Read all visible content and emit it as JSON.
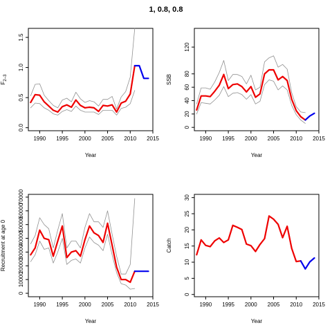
{
  "figure": {
    "title": "1, 0.8, 0.8"
  },
  "colors": {
    "main": "#ee0000",
    "forecast": "#0000ee",
    "ci": "#909090",
    "axis": "#000000"
  },
  "chart_data": [
    {
      "id": "f",
      "type": "line",
      "xlabel": "Year",
      "ylabel": "F",
      "ylabel_sub": "2–3",
      "xlim": [
        1987.5,
        2015
      ],
      "ylim": [
        -0.05,
        1.65
      ],
      "xticks": [
        "1990",
        "1995",
        "2000",
        "2005",
        "2010",
        "2015"
      ],
      "yticks": [
        "0.0",
        "0.5",
        "1.0",
        "1.5"
      ],
      "series": [
        {
          "role": "upper",
          "x": [
            1988,
            1989,
            1990,
            1991,
            1992,
            1993,
            1994,
            1995,
            1996,
            1997,
            1998,
            1999,
            2000,
            2001,
            2002,
            2003,
            2004,
            2005,
            2006,
            2007,
            2008,
            2009,
            2010,
            2011
          ],
          "y": [
            0.53,
            0.72,
            0.73,
            0.54,
            0.45,
            0.37,
            0.33,
            0.46,
            0.49,
            0.43,
            0.59,
            0.48,
            0.42,
            0.45,
            0.43,
            0.36,
            0.47,
            0.47,
            0.52,
            0.31,
            0.51,
            0.6,
            0.84,
            1.65
          ]
        },
        {
          "role": "estimate",
          "x": [
            1988,
            1989,
            1990,
            1991,
            1992,
            1993,
            1994,
            1995,
            1996,
            1997,
            1998,
            1999,
            2000,
            2001,
            2002,
            2003,
            2004,
            2005,
            2006,
            2007,
            2008,
            2009,
            2010,
            2011
          ],
          "y": [
            0.42,
            0.55,
            0.54,
            0.43,
            0.36,
            0.29,
            0.26,
            0.35,
            0.38,
            0.34,
            0.46,
            0.37,
            0.33,
            0.34,
            0.33,
            0.27,
            0.37,
            0.36,
            0.38,
            0.26,
            0.41,
            0.44,
            0.56,
            1.03
          ]
        },
        {
          "role": "lower",
          "x": [
            1988,
            1989,
            1990,
            1991,
            1992,
            1993,
            1994,
            1995,
            1996,
            1997,
            1998,
            1999,
            2000,
            2001,
            2002,
            2003,
            2004,
            2005,
            2006,
            2007,
            2008,
            2009,
            2010,
            2011
          ],
          "y": [
            0.33,
            0.41,
            0.4,
            0.33,
            0.29,
            0.23,
            0.21,
            0.27,
            0.3,
            0.27,
            0.36,
            0.29,
            0.26,
            0.26,
            0.26,
            0.22,
            0.29,
            0.29,
            0.29,
            0.21,
            0.32,
            0.34,
            0.4,
            0.62
          ]
        },
        {
          "role": "forecast",
          "x": [
            2011,
            2012,
            2013,
            2014
          ],
          "y": [
            1.03,
            1.03,
            0.82,
            0.82
          ]
        }
      ]
    },
    {
      "id": "ssb",
      "type": "line",
      "xlabel": "Year",
      "ylabel": "SSB",
      "xlim": [
        1987.5,
        2015
      ],
      "ylim": [
        -5,
        148
      ],
      "xticks": [
        "1990",
        "1995",
        "2000",
        "2005",
        "2010",
        "2015"
      ],
      "yticks": [
        "0",
        "20",
        "40",
        "60",
        "80",
        "120"
      ],
      "yticks_at": [
        0,
        20,
        40,
        60,
        80,
        120
      ],
      "series": [
        {
          "role": "upper",
          "x": [
            1988,
            1989,
            1990,
            1991,
            1992,
            1993,
            1994,
            1995,
            1996,
            1997,
            1998,
            1999,
            2000,
            2001,
            2002,
            2003,
            2004,
            2005,
            2006,
            2007,
            2008,
            2009,
            2010,
            2011,
            2012
          ],
          "y": [
            35,
            59,
            59,
            57,
            68,
            82,
            100,
            70,
            79,
            79,
            76,
            65,
            78,
            56,
            60,
            98,
            104,
            107,
            90,
            94,
            87,
            52,
            31,
            23,
            22
          ]
        },
        {
          "role": "estimate",
          "x": [
            1988,
            1989,
            1990,
            1991,
            1992,
            1993,
            1994,
            1995,
            1996,
            1997,
            1998,
            1999,
            2000,
            2001,
            2002,
            2003,
            2004,
            2005,
            2006,
            2007,
            2008,
            2009,
            2010,
            2011,
            2012
          ],
          "y": [
            26,
            47,
            47,
            46,
            54,
            63,
            79,
            58,
            64,
            65,
            61,
            53,
            61,
            45,
            50,
            80,
            86,
            86,
            71,
            76,
            70,
            42,
            25,
            16,
            11
          ]
        },
        {
          "role": "lower",
          "x": [
            1988,
            1989,
            1990,
            1991,
            1992,
            1993,
            1994,
            1995,
            1996,
            1997,
            1998,
            1999,
            2000,
            2001,
            2002,
            2003,
            2004,
            2005,
            2006,
            2007,
            2008,
            2009,
            2010,
            2011,
            2012
          ],
          "y": [
            20,
            37,
            36,
            35,
            41,
            48,
            61,
            46,
            51,
            52,
            49,
            42,
            49,
            35,
            39,
            64,
            71,
            69,
            56,
            62,
            56,
            33,
            19,
            11,
            6
          ]
        },
        {
          "role": "forecast",
          "x": [
            2012,
            2013,
            2014
          ],
          "y": [
            11,
            17,
            21
          ]
        }
      ]
    },
    {
      "id": "recruitment",
      "type": "line",
      "xlabel": "Year",
      "ylabel": "Recruitment at age 0",
      "xlim": [
        1987.5,
        2015
      ],
      "ylim": [
        -2500,
        72000
      ],
      "xticks": [
        "1990",
        "1995",
        "2000",
        "2005",
        "2010",
        "2015"
      ],
      "yticks": [
        "0",
        "10000",
        "20000",
        "30000",
        "40000",
        "50000",
        "60000",
        "70000"
      ],
      "yticks_at": [
        0,
        10000,
        20000,
        30000,
        40000,
        50000,
        60000,
        70000
      ],
      "series": [
        {
          "role": "upper",
          "x": [
            1988,
            1989,
            1990,
            1991,
            1992,
            1993,
            1994,
            1995,
            1996,
            1997,
            1998,
            1999,
            2000,
            2001,
            2002,
            2003,
            2004,
            2005,
            2006,
            2007,
            2008,
            2009,
            2010,
            2011
          ],
          "y": [
            36000,
            42000,
            55000,
            50000,
            47000,
            33000,
            46000,
            58000,
            33000,
            38000,
            38000,
            33000,
            48000,
            58000,
            52000,
            52000,
            48000,
            60000,
            43000,
            27000,
            14000,
            14000,
            21000,
            69000
          ]
        },
        {
          "role": "estimate",
          "x": [
            1988,
            1989,
            1990,
            1991,
            1992,
            1993,
            1994,
            1995,
            1996,
            1997,
            1998,
            1999,
            2000,
            2001,
            2002,
            2003,
            2004,
            2005,
            2006,
            2007,
            2008,
            2009,
            2010,
            2011
          ],
          "y": [
            28000,
            33000,
            46000,
            40000,
            39000,
            27000,
            38000,
            49000,
            26000,
            30000,
            31000,
            27000,
            39000,
            49000,
            44000,
            42000,
            37000,
            51000,
            35000,
            19000,
            10000,
            10000,
            8000,
            16000
          ]
        },
        {
          "role": "lower",
          "x": [
            1988,
            1989,
            1990,
            1991,
            1992,
            1993,
            1994,
            1995,
            1996,
            1997,
            1998,
            1999,
            2000,
            2001,
            2002,
            2003,
            2004,
            2005,
            2006,
            2007,
            2008,
            2009,
            2010,
            2011
          ],
          "y": [
            23000,
            28000,
            38000,
            32000,
            33000,
            22000,
            30000,
            40000,
            21000,
            24000,
            25000,
            22000,
            33000,
            41000,
            37000,
            35000,
            31000,
            43000,
            28000,
            15000,
            7000,
            6000,
            3000,
            3500
          ]
        },
        {
          "role": "forecast",
          "x": [
            2011,
            2012,
            2013,
            2014
          ],
          "y": [
            16000,
            16000,
            16000,
            16000
          ]
        }
      ]
    },
    {
      "id": "catch",
      "type": "line",
      "xlabel": "Year",
      "ylabel": "Catch",
      "xlim": [
        1987.5,
        2015
      ],
      "ylim": [
        -0.7,
        31
      ],
      "xticks": [
        "1990",
        "1995",
        "2000",
        "2005",
        "2010",
        "2015"
      ],
      "yticks": [
        "0",
        "5",
        "10",
        "15",
        "20",
        "25",
        "30"
      ],
      "yticks_at": [
        0,
        5,
        10,
        15,
        20,
        25,
        30
      ],
      "series": [
        {
          "role": "estimate",
          "x": [
            1988,
            1989,
            1990,
            1991,
            1992,
            1993,
            1994,
            1995,
            1996,
            1997,
            1998,
            1999,
            2000,
            2001,
            2002,
            2003,
            2004,
            2005,
            2006,
            2007,
            2008,
            2009,
            2010,
            2011
          ],
          "y": [
            12.3,
            16.9,
            15.2,
            14.8,
            16.6,
            17.5,
            16.1,
            16.9,
            21.4,
            20.8,
            20.1,
            15.6,
            15.1,
            13.3,
            15.5,
            17.3,
            24.3,
            23.3,
            21.7,
            17.6,
            21.1,
            14.3,
            10.2,
            10.4
          ]
        },
        {
          "role": "forecast",
          "x": [
            2011,
            2012,
            2013,
            2014
          ],
          "y": [
            10.4,
            7.9,
            10.1,
            11.3
          ]
        }
      ]
    }
  ]
}
